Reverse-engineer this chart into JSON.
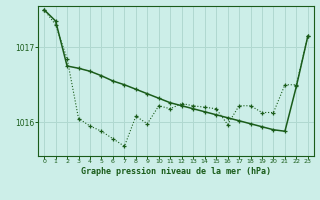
{
  "bg_color": "#cceee8",
  "line_color": "#1a5c1a",
  "grid_color": "#b0d8d0",
  "title": "Graphe pression niveau de la mer (hPa)",
  "title_color": "#1a5c1a",
  "xlim": [
    -0.5,
    23.5
  ],
  "ylim": [
    1015.55,
    1017.55
  ],
  "yticks": [
    1016,
    1017
  ],
  "xticks": [
    0,
    1,
    2,
    3,
    4,
    5,
    6,
    7,
    8,
    9,
    10,
    11,
    12,
    13,
    14,
    15,
    16,
    17,
    18,
    19,
    20,
    21,
    22,
    23
  ],
  "series1_x": [
    0,
    1,
    2,
    3,
    4,
    5,
    6,
    7,
    8,
    9,
    10,
    11,
    12,
    13,
    14,
    15,
    16,
    17,
    18,
    19,
    20,
    21,
    22,
    23
  ],
  "series1_y": [
    1017.5,
    1017.3,
    1016.85,
    1016.05,
    1015.95,
    1015.88,
    1015.78,
    1015.68,
    1016.08,
    1015.98,
    1016.22,
    1016.18,
    1016.25,
    1016.22,
    1016.2,
    1016.18,
    1015.97,
    1016.22,
    1016.22,
    1016.13,
    1016.13,
    1016.5,
    1016.5,
    1017.15
  ],
  "series2_x": [
    0,
    1,
    2,
    3,
    4,
    5,
    6,
    7,
    8,
    9,
    10,
    11,
    12,
    13,
    14,
    15,
    16,
    17,
    18,
    19,
    20,
    21,
    22,
    23
  ],
  "series2_y": [
    1017.5,
    1017.35,
    1016.75,
    1016.72,
    1016.68,
    1016.62,
    1016.55,
    1016.5,
    1016.44,
    1016.38,
    1016.32,
    1016.26,
    1016.22,
    1016.18,
    1016.14,
    1016.1,
    1016.06,
    1016.02,
    1015.98,
    1015.94,
    1015.9,
    1015.88,
    1016.48,
    1017.15
  ]
}
